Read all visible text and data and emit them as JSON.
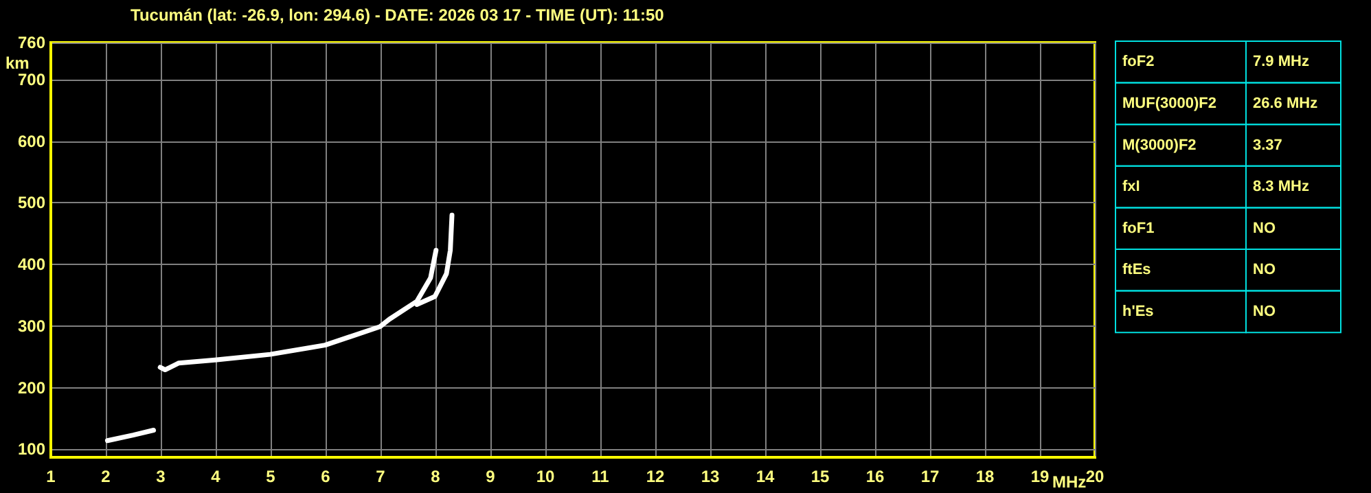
{
  "chart_data": {
    "type": "line",
    "title": "Tucumán (lat: -26.9, lon: 294.6) - DATE: 2026 03 17 - TIME (UT): 11:50",
    "xlabel": "MHz",
    "ylabel": "km",
    "series": [
      {
        "color": "#ffffff",
        "x": [
          2.03,
          2.5,
          2.87
        ],
        "values": [
          114,
          123,
          131
        ]
      },
      {
        "color": "#ffffff",
        "x": [
          2.99,
          3.08,
          3.33,
          3.99,
          4.99,
          5.99,
          6.99,
          7.16,
          7.66,
          7.91,
          8.01
        ],
        "values": [
          233,
          229,
          240,
          245,
          254,
          269,
          299,
          311,
          340,
          378,
          423
        ]
      },
      {
        "color": "#ffffff",
        "x": [
          7.66,
          7.99,
          8.2,
          8.27,
          8.3
        ],
        "values": [
          335,
          348,
          385,
          423,
          480
        ]
      }
    ],
    "xlim": [
      1,
      20
    ],
    "xticks": [
      1,
      2,
      3,
      4,
      5,
      6,
      7,
      8,
      9,
      10,
      11,
      12,
      13,
      14,
      15,
      16,
      17,
      18,
      19,
      20
    ],
    "ylim": [
      87,
      760
    ],
    "yticks": [
      100,
      200,
      300,
      400,
      500,
      600,
      700,
      760
    ],
    "grid": true,
    "marker": "none",
    "line_style": "solid",
    "annotations": [
      "foF2",
      "7.9 MHz",
      "MUF(3000)F2",
      "26.6 MHz",
      "M(3000)F2",
      "3.37",
      "fxI",
      "8.3 MHz",
      "foF1",
      "NO",
      "ftEs",
      "NO",
      "h'Es",
      "NO"
    ]
  }
}
